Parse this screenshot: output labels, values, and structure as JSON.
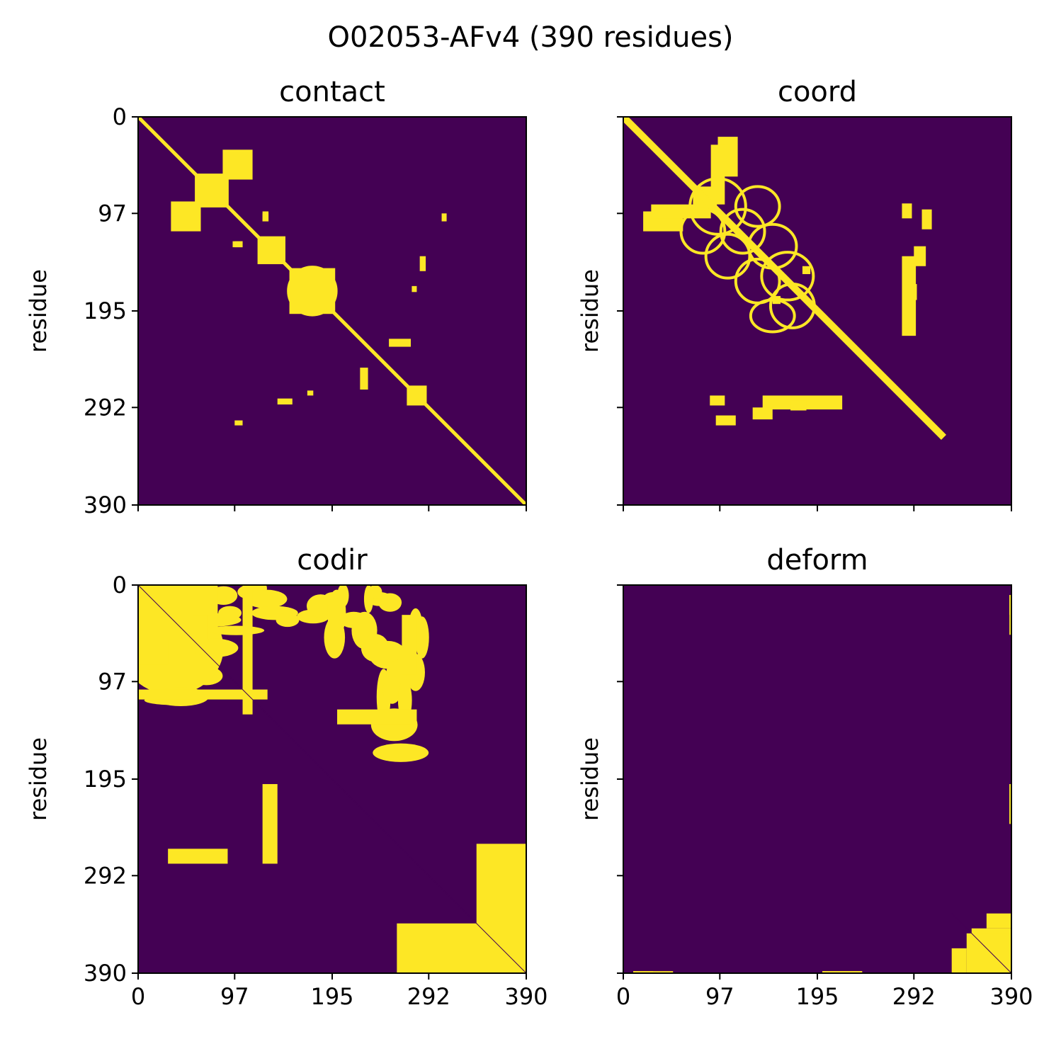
{
  "figure": {
    "title": "O02053-AFv4 (390 residues)"
  },
  "colors": {
    "background": "#440154",
    "foreground": "#fde725",
    "axis": "#000000"
  },
  "chart_data": [
    {
      "type": "heatmap",
      "title": "contact",
      "ylabel": "residue",
      "xlabel": "",
      "n": 390,
      "xlim": [
        0,
        390
      ],
      "ylim": [
        390,
        0
      ],
      "xticks": [
        0,
        97,
        195,
        292,
        390
      ],
      "yticks": [
        0,
        97,
        195,
        292,
        390
      ],
      "show_x_ticklabels": false,
      "show_y_ticklabels": true,
      "diagonal": {
        "from": 0,
        "to": 390,
        "width": 5
      },
      "rects": [
        [
          57,
          57,
          34,
          34
        ],
        [
          33,
          85,
          30,
          30
        ],
        [
          120,
          120,
          28,
          28
        ],
        [
          152,
          152,
          46,
          46
        ],
        [
          270,
          270,
          20,
          20
        ],
        [
          252,
          223,
          22,
          8
        ],
        [
          140,
          283,
          15,
          6
        ],
        [
          125,
          95,
          6,
          10
        ],
        [
          305,
          97,
          5,
          8
        ],
        [
          97,
          125,
          8,
          6
        ],
        [
          275,
          170,
          5,
          6
        ]
      ],
      "rings": [
        [
          175,
          175,
          24,
          24
        ]
      ],
      "blobs": []
    },
    {
      "type": "heatmap",
      "title": "coord",
      "ylabel": "residue",
      "xlabel": "",
      "n": 390,
      "xlim": [
        0,
        390
      ],
      "ylim": [
        390,
        0
      ],
      "xticks": [
        0,
        97,
        195,
        292,
        390
      ],
      "yticks": [
        0,
        97,
        195,
        292,
        390
      ],
      "show_x_ticklabels": false,
      "show_y_ticklabels": false,
      "diagonal": {
        "from": 0,
        "to": 322,
        "width": 10
      },
      "rects": [
        [
          70,
          72,
          22,
          22
        ],
        [
          95,
          20,
          20,
          40
        ],
        [
          140,
          280,
          80,
          14
        ],
        [
          87,
          280,
          15,
          10
        ],
        [
          28,
          88,
          60,
          14
        ],
        [
          300,
          93,
          10,
          20
        ],
        [
          292,
          130,
          12,
          20
        ],
        [
          285,
          168,
          10,
          16
        ],
        [
          150,
          180,
          8,
          8
        ]
      ],
      "rings": [
        [
          95,
          90,
          28,
          28
        ],
        [
          135,
          90,
          22,
          20
        ],
        [
          80,
          115,
          22,
          22
        ],
        [
          120,
          115,
          22,
          22
        ],
        [
          150,
          130,
          24,
          22
        ],
        [
          105,
          140,
          22,
          22
        ],
        [
          165,
          160,
          26,
          24
        ],
        [
          135,
          165,
          22,
          22
        ],
        [
          170,
          190,
          22,
          22
        ],
        [
          150,
          200,
          22,
          16
        ]
      ],
      "blobs": []
    },
    {
      "type": "heatmap",
      "title": "codir",
      "ylabel": "residue",
      "xlabel": "",
      "n": 390,
      "xlim": [
        0,
        390
      ],
      "ylim": [
        390,
        0
      ],
      "xticks": [
        0,
        97,
        195,
        292,
        390
      ],
      "yticks": [
        0,
        97,
        195,
        292,
        390
      ],
      "show_x_ticklabels": true,
      "show_y_ticklabels": true,
      "diagonal": {
        "from": 0,
        "to": 390,
        "width": 1
      },
      "rects": [
        [
          0,
          0,
          70,
          55
        ],
        [
          0,
          55,
          30,
          25
        ],
        [
          0,
          105,
          130,
          10
        ],
        [
          30,
          265,
          60,
          15
        ],
        [
          125,
          200,
          15,
          80
        ],
        [
          260,
          340,
          130,
          50
        ]
      ],
      "rings": [],
      "blobs": [
        [
          10,
          80,
          140,
          50
        ],
        [
          320,
          260,
          70,
          40
        ],
        [
          160,
          180,
          220,
          200
        ],
        [
          110,
          90,
          30,
          170
        ],
        [
          160,
          330,
          120,
          20
        ],
        [
          200,
          320,
          120,
          40
        ],
        [
          245,
          10,
          25,
          70
        ],
        [
          330,
          100,
          140,
          30
        ],
        [
          430,
          80,
          50,
          30
        ],
        [
          460,
          130,
          120,
          20
        ],
        [
          360,
          180,
          100,
          40
        ],
        [
          400,
          30,
          60,
          40
        ],
        [
          520,
          20,
          50,
          30
        ],
        [
          560,
          10,
          40,
          40
        ],
        [
          600,
          40,
          90,
          40
        ],
        [
          640,
          80,
          100,
          30
        ],
        [
          700,
          100,
          50,
          30
        ],
        [
          820,
          90,
          70,
          30
        ],
        [
          855,
          60,
          60,
          50
        ],
        [
          920,
          150,
          45,
          90
        ],
        [
          930,
          80,
          40,
          100
        ],
        [
          915,
          40,
          45,
          30
        ],
        [
          960,
          30,
          25,
          50
        ],
        [
          1010,
          100,
          60,
          35
        ],
        [
          1130,
          40,
          55,
          30
        ],
        [
          1180,
          50,
          50,
          40
        ],
        [
          1060,
          130,
          55,
          80
        ],
        [
          1110,
          180,
          60,
          60
        ],
        [
          1170,
          200,
          80,
          60
        ],
        [
          1250,
          250,
          80,
          60
        ],
        [
          1150,
          320,
          30,
          120
        ],
        [
          1190,
          300,
          40,
          60
        ],
        [
          1300,
          120,
          30,
          80
        ],
        [
          1330,
          150,
          30,
          90
        ],
        [
          1300,
          250,
          40,
          80
        ],
        [
          1200,
          400,
          100,
          70
        ],
        [
          1230,
          480,
          120,
          40
        ],
        [
          1110,
          20,
          30,
          30
        ],
        [
          1080,
          40,
          20,
          60
        ],
        [
          1250,
          330,
          30,
          90
        ]
      ],
      "blob_units": "axis-permille"
    },
    {
      "type": "heatmap",
      "title": "deform",
      "ylabel": "residue",
      "xlabel": "",
      "n": 390,
      "xlim": [
        0,
        390
      ],
      "ylim": [
        390,
        0
      ],
      "xticks": [
        0,
        97,
        195,
        292,
        390
      ],
      "yticks": [
        0,
        97,
        195,
        292,
        390
      ],
      "show_x_ticklabels": true,
      "show_y_ticklabels": false,
      "diagonal": {
        "from": 330,
        "to": 390,
        "width": 1
      },
      "rects": [
        [
          350,
          345,
          40,
          45
        ],
        [
          365,
          330,
          25,
          15
        ],
        [
          388,
          200,
          2,
          40
        ],
        [
          388,
          10,
          2,
          20
        ],
        [
          10,
          388,
          40,
          2
        ],
        [
          200,
          388,
          40,
          2
        ]
      ],
      "rings": [],
      "blobs": []
    }
  ]
}
